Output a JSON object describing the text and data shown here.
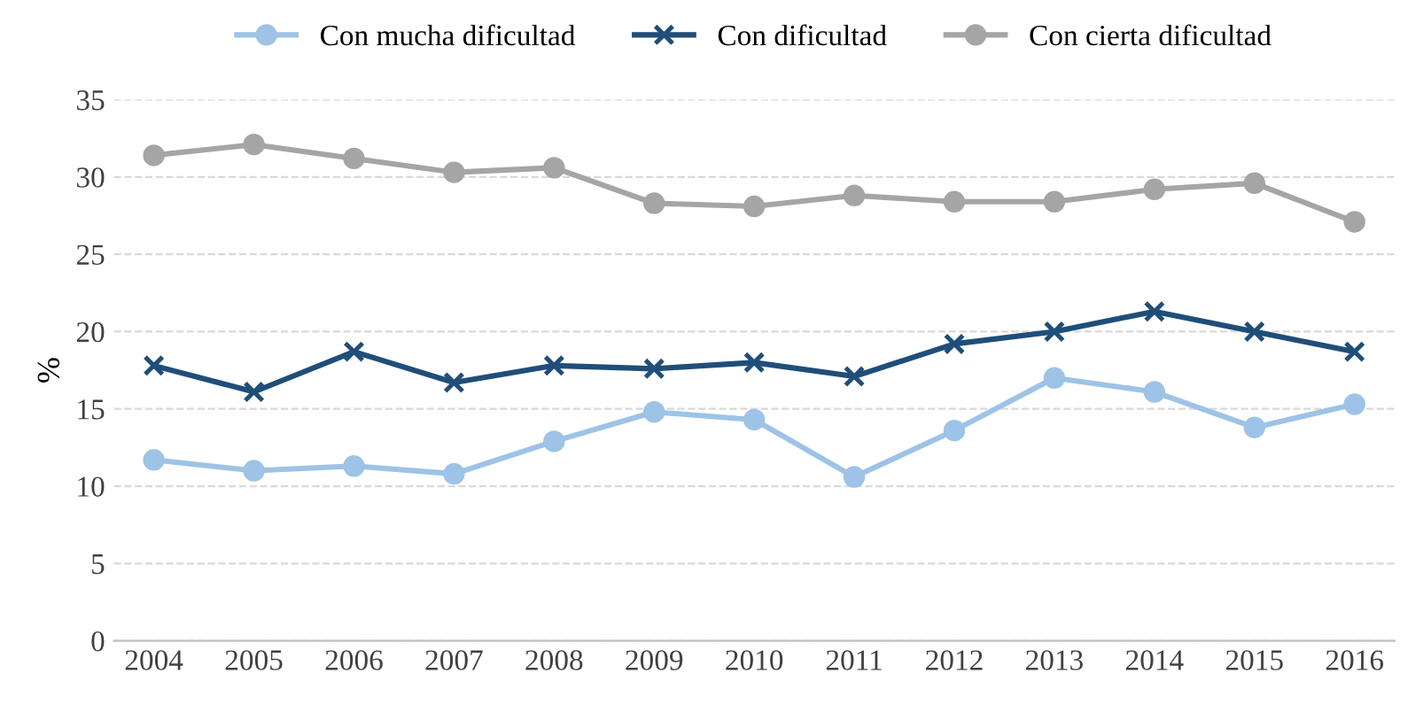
{
  "chart_data": {
    "type": "line",
    "ylabel": "%",
    "categories": [
      "2004",
      "2005",
      "2006",
      "2007",
      "2008",
      "2009",
      "2010",
      "2011",
      "2012",
      "2013",
      "2014",
      "2015",
      "2016"
    ],
    "series": [
      {
        "name": "Con mucha dificultad",
        "color": "#9dc3e6",
        "marker": "circle",
        "values": [
          11.7,
          11.0,
          11.3,
          10.8,
          12.9,
          14.8,
          14.3,
          10.6,
          13.6,
          17.0,
          16.1,
          13.8,
          15.3
        ]
      },
      {
        "name": "Con dificultad",
        "color": "#1f4e79",
        "marker": "cross",
        "values": [
          17.8,
          16.1,
          18.7,
          16.7,
          17.8,
          17.6,
          18.0,
          17.1,
          19.2,
          20.0,
          21.3,
          20.0,
          18.7
        ]
      },
      {
        "name": "Con cierta dificultad",
        "color": "#a5a5a5",
        "marker": "circle",
        "values": [
          31.4,
          32.1,
          31.2,
          30.3,
          30.6,
          28.3,
          28.1,
          28.8,
          28.4,
          28.4,
          29.2,
          29.6,
          27.1
        ]
      }
    ],
    "ylim": [
      0,
      35
    ],
    "yticks": [
      0,
      5,
      10,
      15,
      20,
      25,
      30,
      35
    ],
    "grid": "y",
    "legend": "top",
    "line_style": "solid"
  }
}
